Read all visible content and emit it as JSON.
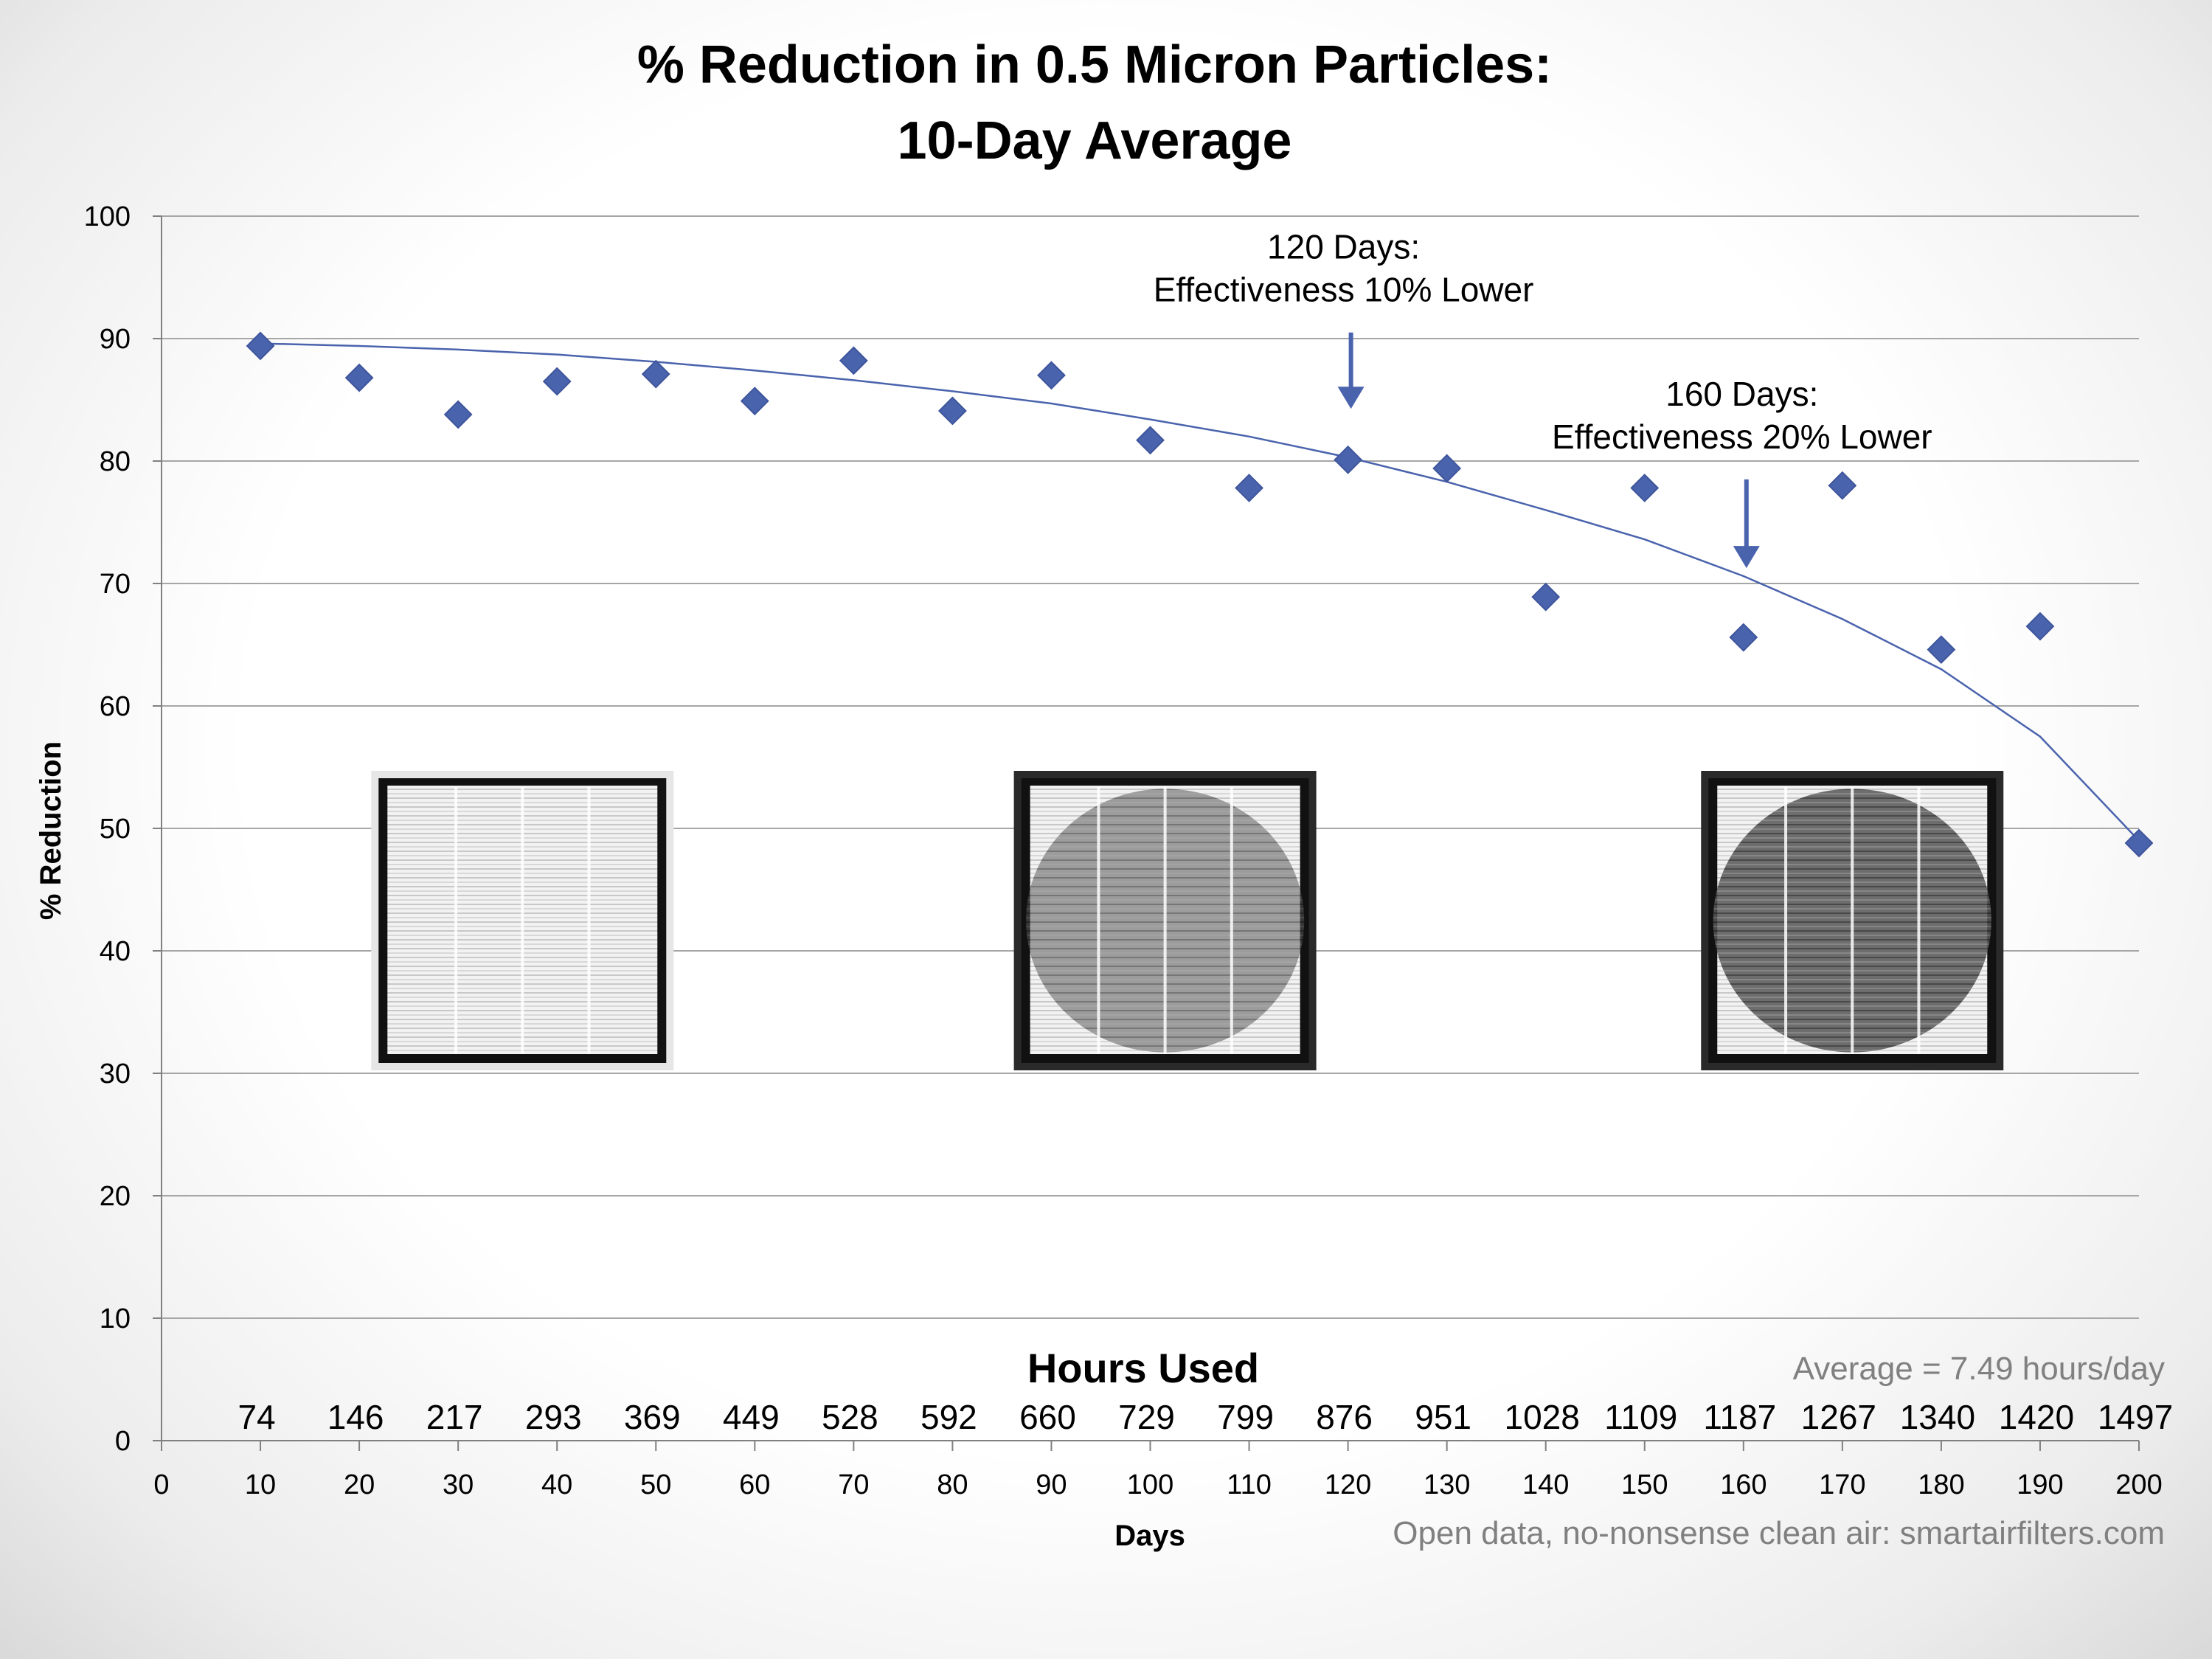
{
  "chart_data": {
    "type": "scatter",
    "title_lines": [
      "% Reduction in 0.5 Micron Particles:",
      "10-Day Average"
    ],
    "xlabel": "Days",
    "ylabel": "% Reduction",
    "xlim": [
      0,
      200
    ],
    "ylim": [
      0,
      100
    ],
    "x_ticks": [
      0,
      10,
      20,
      30,
      40,
      50,
      60,
      70,
      80,
      90,
      100,
      110,
      120,
      130,
      140,
      150,
      160,
      170,
      180,
      190,
      200
    ],
    "y_ticks": [
      0,
      10,
      20,
      30,
      40,
      50,
      60,
      70,
      80,
      90,
      100
    ],
    "grid": true,
    "series": [
      {
        "color": "#4a63ad",
        "marker": "diamond",
        "x": [
          10,
          20,
          30,
          40,
          50,
          60,
          70,
          80,
          90,
          100,
          110,
          120,
          130,
          140,
          150,
          160,
          170,
          180,
          190,
          200
        ],
        "y": [
          89.4,
          86.8,
          83.8,
          86.5,
          87.1,
          84.9,
          88.2,
          84.1,
          87.0,
          81.7,
          77.8,
          80.1,
          79.4,
          68.9,
          77.8,
          65.6,
          78.0,
          64.6,
          66.5,
          48.8
        ]
      }
    ],
    "trendline": {
      "color": "#4a63ad",
      "x": [
        10,
        20,
        30,
        40,
        50,
        60,
        70,
        80,
        90,
        100,
        110,
        120,
        130,
        140,
        150,
        160,
        170,
        180,
        190,
        200
      ],
      "y": [
        89.6,
        89.4,
        89.1,
        88.7,
        88.1,
        87.4,
        86.6,
        85.7,
        84.7,
        83.4,
        82.0,
        80.3,
        78.3,
        76.0,
        73.6,
        70.6,
        67.1,
        63.0,
        57.5,
        49.0
      ]
    },
    "hours_used": {
      "title": "Hours Used",
      "values": [
        "74",
        "146",
        "217",
        "293",
        "369",
        "449",
        "528",
        "592",
        "660",
        "729",
        "799",
        "876",
        "951",
        "1028",
        "1109",
        "1187",
        "1267",
        "1340",
        "1420",
        "1497"
      ]
    },
    "annotations": [
      {
        "day": 120,
        "arrow_from": 90.5,
        "arrow_to": 84.5,
        "lines": [
          "120 Days:",
          "Effectiveness 10% Lower"
        ]
      },
      {
        "day": 160,
        "arrow_from": 78.5,
        "arrow_to": 71.5,
        "lines": [
          "160 Days:",
          "Effectiveness 20% Lower"
        ]
      }
    ],
    "average_note": "Average = 7.49 hours/day",
    "footer": "Open data, no-nonsense clean air: smartairfilters.com",
    "filter_images": [
      {
        "name": "clean-filter",
        "center_day": 36.5,
        "dirt": 0
      },
      {
        "name": "used-filter-120-days",
        "center_day": 101.5,
        "dirt": 0.55
      },
      {
        "name": "used-filter-200-days",
        "center_day": 171,
        "dirt": 0.85
      }
    ]
  }
}
